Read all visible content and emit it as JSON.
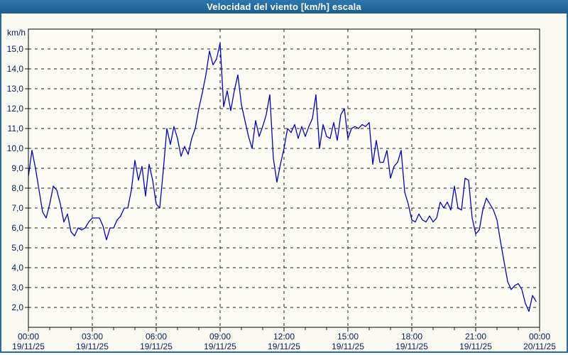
{
  "window": {
    "title": "Velocidad del viento [km/h] escala"
  },
  "colors": {
    "titlebar": "#226a9f",
    "titlebar_light": "#2e77ae",
    "titlebar_dark": "#1c5c8d",
    "border": "#226a9f",
    "background": "#fafaf2",
    "plot_background": "#fdfdf6",
    "axis_text": "#0a2060",
    "gridline": "#1a1a1a",
    "plot_border": "#000000",
    "series_line": "#0000cd"
  },
  "chart_data": {
    "type": "line",
    "title": "Velocidad del viento [km/h] escala",
    "ylabel": "km/h",
    "xlabel": "",
    "ylim": [
      1,
      16
    ],
    "grid": "dashed",
    "legend": "none",
    "y_ticks": [
      {
        "value": 2,
        "label": "2,0"
      },
      {
        "value": 3,
        "label": "3,0"
      },
      {
        "value": 4,
        "label": "4,0"
      },
      {
        "value": 5,
        "label": "5,0"
      },
      {
        "value": 6,
        "label": "6,0"
      },
      {
        "value": 7,
        "label": "7,0"
      },
      {
        "value": 8,
        "label": "8,0"
      },
      {
        "value": 9,
        "label": "9,0"
      },
      {
        "value": 10,
        "label": "10,0"
      },
      {
        "value": 11,
        "label": "11,0"
      },
      {
        "value": 12,
        "label": "12,0"
      },
      {
        "value": 13,
        "label": "13,0"
      },
      {
        "value": 14,
        "label": "14,0"
      },
      {
        "value": 15,
        "label": "15,0"
      }
    ],
    "x_domain_minutes": [
      0,
      1440
    ],
    "x_minor_tick_every_minutes": 60,
    "x_major_ticks": [
      {
        "minutes": 0,
        "time": "00:00",
        "date": "19/11/25"
      },
      {
        "minutes": 180,
        "time": "03:00",
        "date": "19/11/25"
      },
      {
        "minutes": 360,
        "time": "06:00",
        "date": "19/11/25"
      },
      {
        "minutes": 540,
        "time": "09:00",
        "date": "19/11/25"
      },
      {
        "minutes": 720,
        "time": "12:00",
        "date": "19/11/25"
      },
      {
        "minutes": 900,
        "time": "15:00",
        "date": "19/11/25"
      },
      {
        "minutes": 1080,
        "time": "18:00",
        "date": "19/11/25"
      },
      {
        "minutes": 1260,
        "time": "21:00",
        "date": "19/11/25"
      },
      {
        "minutes": 1440,
        "time": "00:00",
        "date": "20/11/25"
      }
    ],
    "series": [
      {
        "name": "Velocidad del viento [km/h]",
        "color": "#0000cd",
        "start_minutes": 0,
        "sample_interval_minutes": 10,
        "values": [
          8.6,
          9.9,
          9.0,
          7.9,
          6.8,
          6.5,
          7.2,
          8.1,
          7.9,
          7.2,
          6.3,
          6.7,
          5.8,
          5.6,
          6.0,
          5.9,
          6.0,
          6.3,
          6.5,
          6.5,
          6.5,
          6.1,
          5.4,
          6.0,
          6.0,
          6.4,
          6.6,
          7.0,
          7.0,
          7.9,
          9.4,
          8.4,
          9.1,
          7.6,
          9.2,
          8.4,
          7.2,
          7.0,
          8.9,
          11.0,
          10.2,
          11.1,
          10.5,
          9.6,
          10.1,
          9.7,
          10.5,
          11.0,
          12.0,
          12.8,
          13.7,
          14.9,
          14.2,
          14.5,
          15.3,
          12.1,
          12.9,
          11.9,
          12.9,
          13.7,
          12.2,
          11.4,
          10.6,
          10.0,
          11.4,
          10.6,
          11.1,
          11.7,
          12.7,
          9.5,
          8.3,
          9.2,
          10.0,
          11.0,
          10.8,
          11.2,
          10.5,
          11.1,
          10.6,
          11.1,
          11.5,
          12.7,
          10.0,
          11.2,
          10.6,
          10.5,
          11.3,
          10.4,
          11.7,
          12.0,
          10.5,
          11.0,
          11.1,
          11.0,
          11.2,
          11.1,
          11.3,
          9.2,
          10.4,
          9.3,
          9.3,
          9.9,
          8.5,
          9.1,
          9.3,
          9.9,
          7.8,
          7.2,
          6.4,
          6.3,
          6.7,
          6.4,
          6.3,
          6.6,
          6.3,
          6.5,
          7.3,
          7.0,
          7.3,
          6.9,
          8.1,
          7.0,
          6.9,
          8.5,
          8.4,
          6.5,
          5.7,
          5.9,
          6.9,
          7.5,
          7.2,
          6.9,
          6.4,
          5.3,
          4.3,
          3.3,
          2.9,
          3.1,
          3.2,
          2.9,
          2.2,
          1.8,
          2.6,
          2.3
        ]
      }
    ]
  }
}
